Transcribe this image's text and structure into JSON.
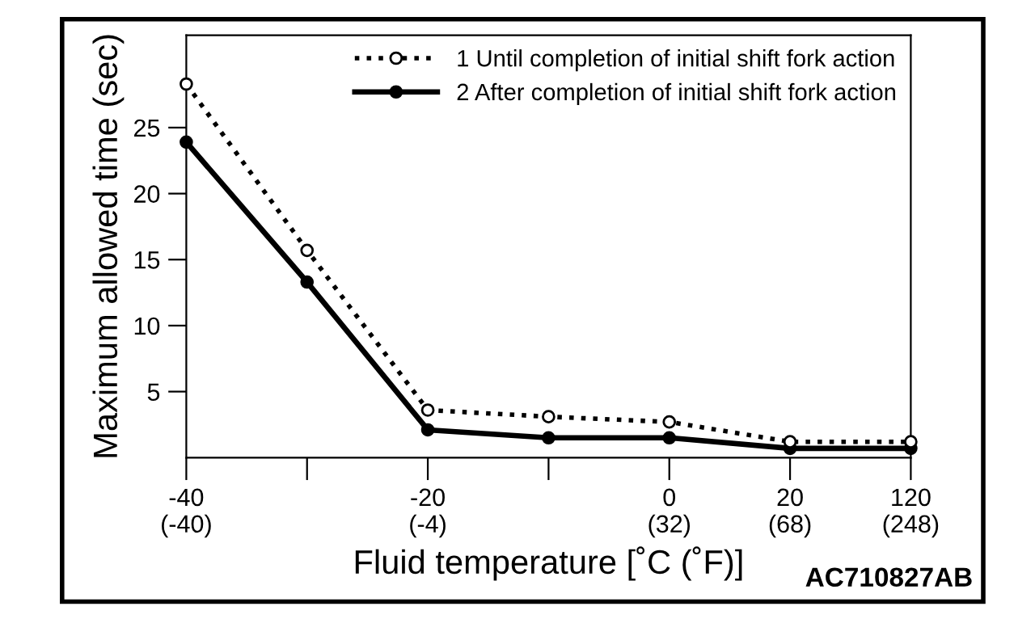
{
  "chart_data": {
    "type": "line",
    "xlabel": "Fluid temperature [˚C (˚F)]",
    "ylabel": "Maximum allowed time (sec)",
    "categories": [
      "-40\n(-40)",
      null,
      "-20\n(-4)",
      null,
      "0\n(32)",
      "20\n(68)",
      "120\n(248)"
    ],
    "ylim": [
      0,
      32
    ],
    "yticks": [
      5,
      10,
      15,
      20,
      25
    ],
    "series": [
      {
        "name": "1 Until completion of initial shift fork action",
        "color": "#000000",
        "line_style": "dotted",
        "marker": "circle",
        "values": [
          28.3,
          15.7,
          3.6,
          3.1,
          2.7,
          1.2,
          1.2
        ]
      },
      {
        "name": "2 After completion of initial shift fork action",
        "color": "#000000",
        "line_style": "solid",
        "marker": "circle",
        "values": [
          23.9,
          13.3,
          2.1,
          1.5,
          1.5,
          0.7,
          0.7
        ]
      }
    ],
    "grid": false,
    "legend": "top right",
    "annotations": [
      "AC710827AB"
    ]
  }
}
